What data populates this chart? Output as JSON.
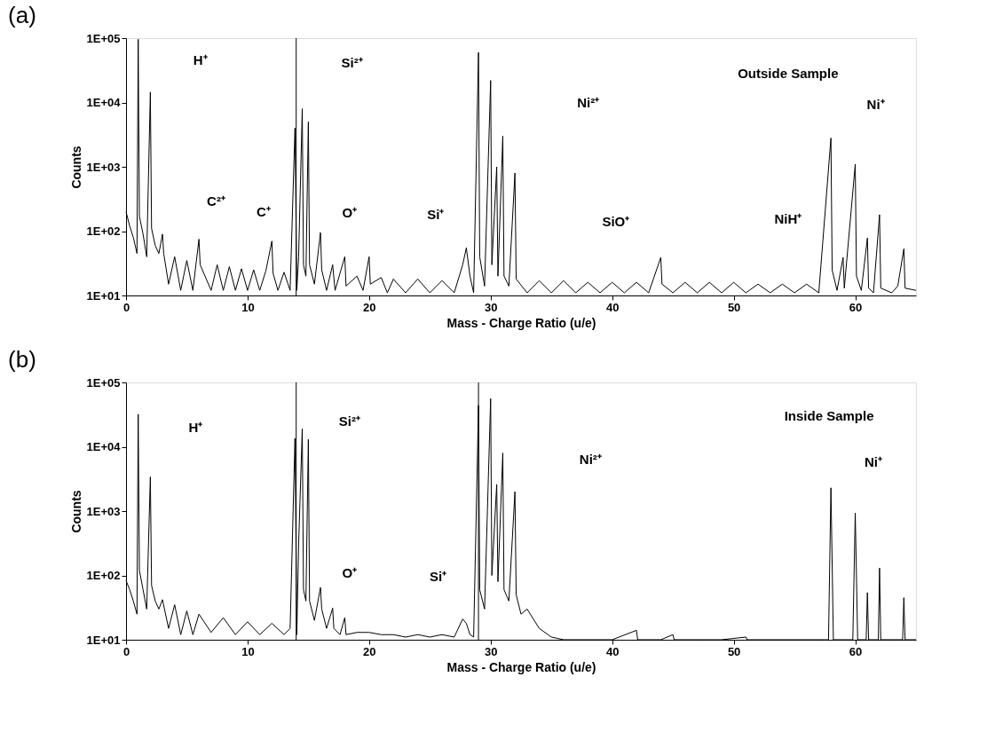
{
  "chart_data": [
    {
      "type": "line",
      "title": "(a)",
      "xlabel": "Mass - Charge Ratio (u/e)",
      "ylabel": "Counts",
      "log": "y",
      "grid": false,
      "marker": "none",
      "line_style": "solid",
      "xlim": [
        0,
        65
      ],
      "xticks": [
        0,
        10,
        20,
        30,
        40,
        50,
        60
      ],
      "ylim": [
        10,
        100000
      ],
      "yticks": [
        {
          "value": 10,
          "label": "1E+01"
        },
        {
          "value": 100,
          "label": "1E+02"
        },
        {
          "value": 1000,
          "label": "1E+03"
        },
        {
          "value": 10000,
          "label": "1E+04"
        },
        {
          "value": 100000,
          "label": "1E+05"
        }
      ],
      "x": [
        0,
        0.3,
        0.6,
        0.9,
        1,
        1.1,
        1.4,
        1.7,
        2,
        2.1,
        2.4,
        2.7,
        3,
        3.1,
        3.5,
        4,
        4.5,
        5,
        5.5,
        6,
        6.1,
        7,
        7.5,
        8,
        8.5,
        9,
        9.5,
        10,
        10.5,
        11,
        11.5,
        12,
        12.1,
        12.5,
        13,
        13.5,
        13.9,
        14.05,
        14.2,
        14.5,
        14.6,
        14.8,
        15,
        15.1,
        15.5,
        16,
        16.1,
        16.5,
        17,
        17.2,
        17.6,
        18,
        18.1,
        19,
        19.5,
        20,
        20.1,
        21,
        21.5,
        22,
        23,
        24,
        25,
        26,
        27,
        27.7,
        28,
        28.3,
        28.6,
        29,
        29.1,
        29.5,
        30,
        30.1,
        30.5,
        30.6,
        31,
        31.1,
        31.5,
        32,
        32.1,
        33,
        34,
        35,
        36,
        37,
        38,
        39,
        40,
        41,
        42,
        43,
        44,
        44.1,
        45,
        46,
        47,
        48,
        49,
        50,
        51,
        52,
        53,
        54,
        55,
        56,
        57,
        58,
        58.1,
        58.5,
        59,
        59.1,
        60,
        60.1,
        60.5,
        61,
        61.1,
        61.5,
        62,
        62.1,
        63,
        63.5,
        64,
        64.1,
        65
      ],
      "series": [
        {
          "color": "#000000",
          "values": [
            200,
            120,
            80,
            45,
            96000,
            170,
            90,
            40,
            14500,
            110,
            60,
            45,
            90,
            45,
            15,
            40,
            12,
            35,
            12,
            75,
            30,
            12,
            30,
            12,
            28,
            12,
            26,
            12,
            25,
            12,
            24,
            70,
            22,
            12,
            23,
            12,
            4000,
            12,
            40,
            8000,
            30,
            20,
            5000,
            30,
            15,
            95,
            25,
            12,
            30,
            12,
            22,
            40,
            14,
            20,
            12,
            40,
            15,
            19,
            11,
            18,
            11,
            18,
            11,
            17,
            11,
            30,
            55,
            20,
            11,
            60000,
            40,
            14,
            22000,
            30,
            1000,
            20,
            3000,
            20,
            14,
            800,
            18,
            11,
            17,
            11,
            17,
            11,
            16,
            11,
            16,
            11,
            16,
            11,
            39,
            15,
            11,
            16,
            11,
            16,
            11,
            16,
            11,
            15,
            11,
            15,
            11,
            15,
            11,
            2800,
            25,
            12,
            39,
            13,
            1100,
            20,
            12,
            78,
            13,
            11,
            180,
            13,
            11,
            14,
            53,
            13,
            12
          ]
        }
      ],
      "ref_lines": [
        {
          "axis": "x",
          "value": 14
        }
      ],
      "annotations": [
        "H⁺",
        "Si²⁺",
        "Ni²⁺",
        "Outside Sample",
        "Ni⁺",
        "C²⁺",
        "C⁺",
        "O⁺",
        "Si⁺",
        "SiO⁺",
        "NiH⁺"
      ]
    },
    {
      "type": "line",
      "title": "(b)",
      "xlabel": "Mass - Charge Ratio (u/e)",
      "ylabel": "Counts",
      "log": "y",
      "grid": false,
      "marker": "none",
      "line_style": "solid",
      "xlim": [
        0,
        65
      ],
      "xticks": [
        0,
        10,
        20,
        30,
        40,
        50,
        60
      ],
      "ylim": [
        10,
        100000
      ],
      "yticks": [
        {
          "value": 10,
          "label": "1E+01"
        },
        {
          "value": 100,
          "label": "1E+02"
        },
        {
          "value": 1000,
          "label": "1E+03"
        },
        {
          "value": 10000,
          "label": "1E+04"
        },
        {
          "value": 100000,
          "label": "1E+05"
        }
      ],
      "x": [
        0,
        0.3,
        0.6,
        0.9,
        1,
        1.1,
        1.4,
        1.7,
        2,
        2.1,
        2.4,
        2.7,
        3,
        3.5,
        4,
        4.5,
        5,
        5.5,
        6,
        7,
        8,
        9,
        10,
        11,
        12,
        13,
        13.5,
        13.9,
        14.05,
        14.2,
        14.5,
        14.6,
        14.8,
        15,
        15.1,
        15.5,
        16,
        16.1,
        16.5,
        17,
        17.1,
        17.6,
        18,
        18.1,
        19,
        20,
        21,
        22,
        23,
        24,
        25,
        26,
        27,
        27.7,
        28,
        28.3,
        28.6,
        29,
        29.1,
        29.5,
        30,
        30.1,
        30.5,
        30.6,
        31,
        31.1,
        31.5,
        32,
        32.1,
        32.5,
        33,
        34,
        35,
        36,
        38,
        40,
        42,
        42.1,
        44,
        45,
        45.1,
        47,
        49,
        51,
        51.1,
        53,
        55,
        57,
        57.8,
        58,
        58.2,
        59,
        59.8,
        60,
        60.2,
        60.9,
        61,
        61.1,
        61.9,
        62,
        62.1,
        63,
        63.9,
        64,
        64.1,
        65
      ],
      "series": [
        {
          "color": "#000000",
          "values": [
            83,
            60,
            40,
            25,
            32000,
            120,
            60,
            30,
            3400,
            70,
            40,
            30,
            42,
            15,
            35,
            12,
            28,
            12,
            25,
            13,
            22,
            12,
            19,
            12,
            18,
            12,
            15,
            13500,
            12,
            300,
            19000,
            60,
            40,
            13000,
            40,
            20,
            65,
            30,
            15,
            31,
            15,
            12,
            22,
            12,
            13,
            13,
            12,
            12,
            11,
            12,
            11,
            12,
            11,
            21,
            18,
            12,
            11,
            44000,
            60,
            30,
            56000,
            100,
            2600,
            80,
            8000,
            60,
            40,
            2000,
            50,
            25,
            30,
            15,
            11,
            10,
            10,
            10,
            14,
            10,
            10,
            12,
            10,
            10,
            10,
            11,
            10,
            10,
            10,
            10,
            10,
            2300,
            10,
            10,
            10,
            930,
            10,
            10,
            54,
            10,
            10,
            130,
            10,
            10,
            10,
            45,
            10,
            10
          ]
        }
      ],
      "ref_lines": [
        {
          "axis": "x",
          "value": 14
        },
        {
          "axis": "x",
          "value": 29
        }
      ],
      "annotations": [
        "H⁺",
        "Si²⁺",
        "Ni²⁺",
        "Inside Sample",
        "Ni⁺",
        "O⁺",
        "Si⁺"
      ]
    }
  ]
}
